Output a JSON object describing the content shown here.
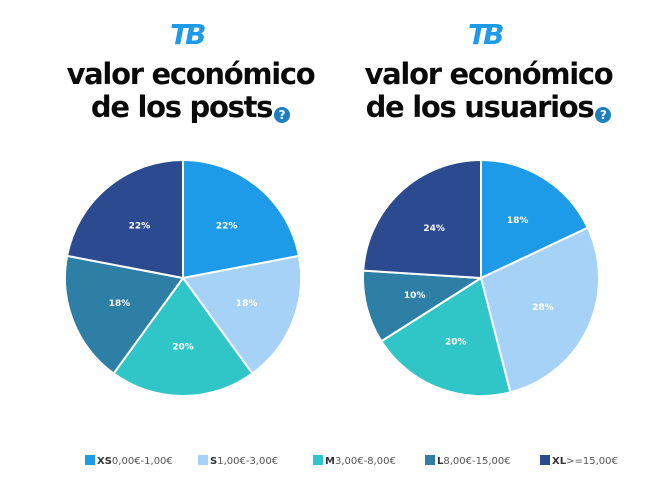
{
  "colors": {
    "XS": "#1e9be8",
    "S": "#a7d2f7",
    "M": "#30c6c7",
    "L": "#2e7fa6",
    "XL": "#2c4a8f"
  },
  "brand": {
    "logo_text": "TB",
    "logo_color": "#1e9be8"
  },
  "help_icon": "question-mark-icon",
  "help_glyph": "?",
  "legend": [
    {
      "code": "XS",
      "range": "0,00€-1,00€"
    },
    {
      "code": "S",
      "range": "1,00€-3,00€"
    },
    {
      "code": "M",
      "range": "3,00€-8,00€"
    },
    {
      "code": "L",
      "range": "8,00€-15,00€"
    },
    {
      "code": "XL",
      "range": ">=15,00€"
    }
  ],
  "chart_data": [
    {
      "type": "pie",
      "title_line1": "valor económico",
      "title_line2": "de los posts",
      "categories": [
        "XS",
        "S",
        "M",
        "L",
        "XL"
      ],
      "values": [
        22,
        18,
        20,
        18,
        22
      ],
      "labels": [
        "22%",
        "18%",
        "20%",
        "18%",
        "22%"
      ]
    },
    {
      "type": "pie",
      "title_line1": "valor económico",
      "title_line2": "de los usuarios",
      "categories": [
        "XS",
        "S",
        "M",
        "L",
        "XL"
      ],
      "values": [
        18,
        28,
        20,
        10,
        24
      ],
      "labels": [
        "18%",
        "28%",
        "20%",
        "10%",
        "24%"
      ]
    }
  ]
}
